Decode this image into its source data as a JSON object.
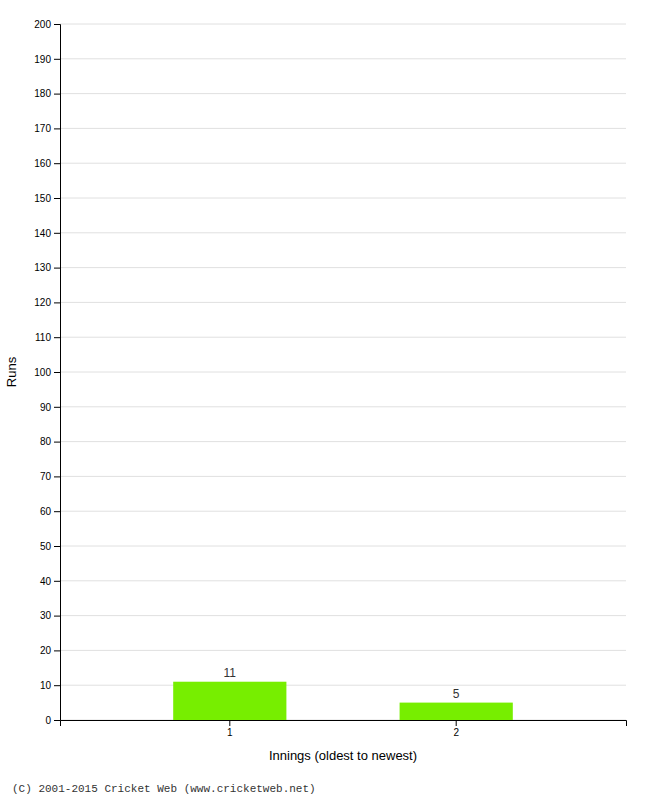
{
  "chart_data": {
    "type": "bar",
    "categories": [
      "1",
      "2"
    ],
    "values": [
      11,
      5
    ],
    "color": "#77ee00",
    "data_labels": true,
    "xlabel": "Innings (oldest to newest)",
    "ylabel": "Runs",
    "footer": "(C) 2001-2015 Cricket Web (www.cricketweb.net)",
    "ylim": [
      0,
      200
    ],
    "yticks": [
      0,
      10,
      20,
      30,
      40,
      50,
      60,
      70,
      80,
      90,
      100,
      110,
      120,
      130,
      140,
      150,
      160,
      170,
      180,
      190,
      200
    ],
    "grid": true
  }
}
